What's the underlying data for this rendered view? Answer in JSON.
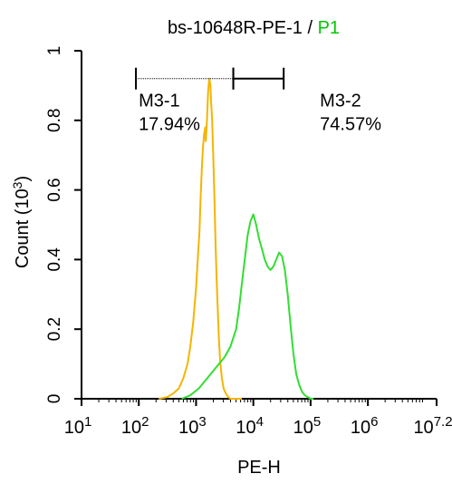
{
  "chart_data": {
    "type": "line",
    "title": {
      "main": "bs-10648R-PE-1",
      "separator": " / ",
      "gate": "P1",
      "gate_color": "#00c800"
    },
    "xlabel": "PE-H",
    "ylabel": "Count",
    "ylabel_unit": "(10",
    "ylabel_exp": "3",
    "ylabel_close": ")",
    "x_scale": "log",
    "xlim_log10": [
      1,
      7.2
    ],
    "ylim": [
      0,
      1
    ],
    "x_ticks": [
      {
        "base": "10",
        "exp": "1",
        "value_log10": 1
      },
      {
        "base": "10",
        "exp": "2",
        "value_log10": 2
      },
      {
        "base": "10",
        "exp": "3",
        "value_log10": 3
      },
      {
        "base": "10",
        "exp": "4",
        "value_log10": 4
      },
      {
        "base": "10",
        "exp": "5",
        "value_log10": 5
      },
      {
        "base": "10",
        "exp": "6",
        "value_log10": 6
      },
      {
        "base": "10",
        "exp": "7.2",
        "value_log10": 7.2
      }
    ],
    "y_ticks": [
      {
        "label": "0",
        "value": 0
      },
      {
        "label": "0.2",
        "value": 0.2
      },
      {
        "label": "0.4",
        "value": 0.4
      },
      {
        "label": "0.6",
        "value": 0.6
      },
      {
        "label": "0.8",
        "value": 0.8
      },
      {
        "label": "1",
        "value": 1
      }
    ],
    "grid": false,
    "series": [
      {
        "color": "#f5b400",
        "x_log10": [
          2.35,
          2.5,
          2.6,
          2.7,
          2.78,
          2.85,
          2.9,
          2.95,
          3.0,
          3.03,
          3.06,
          3.08,
          3.1,
          3.12,
          3.14,
          3.16,
          3.17,
          3.19,
          3.21,
          3.23,
          3.25,
          3.26,
          3.28,
          3.3,
          3.32,
          3.34,
          3.36,
          3.38,
          3.4,
          3.42,
          3.45,
          3.48,
          3.52,
          3.56,
          3.6,
          3.65,
          3.72,
          3.8
        ],
        "y": [
          0.0,
          0.005,
          0.015,
          0.03,
          0.06,
          0.1,
          0.15,
          0.22,
          0.32,
          0.4,
          0.48,
          0.58,
          0.66,
          0.72,
          0.76,
          0.78,
          0.74,
          0.8,
          0.88,
          0.92,
          0.9,
          0.86,
          0.8,
          0.7,
          0.58,
          0.45,
          0.34,
          0.25,
          0.17,
          0.11,
          0.06,
          0.03,
          0.015,
          0.005,
          0.0,
          0.0,
          0.0,
          0.0
        ]
      },
      {
        "color": "#33dd33",
        "x_log10": [
          2.75,
          2.9,
          3.05,
          3.2,
          3.35,
          3.5,
          3.6,
          3.7,
          3.75,
          3.8,
          3.85,
          3.9,
          3.95,
          4.0,
          4.05,
          4.1,
          4.15,
          4.2,
          4.25,
          4.3,
          4.35,
          4.4,
          4.45,
          4.5,
          4.55,
          4.6,
          4.65,
          4.7,
          4.75,
          4.8,
          4.85,
          4.9,
          4.95,
          5.0,
          5.05
        ],
        "y": [
          0.0,
          0.01,
          0.03,
          0.06,
          0.09,
          0.12,
          0.15,
          0.2,
          0.26,
          0.33,
          0.4,
          0.47,
          0.51,
          0.53,
          0.5,
          0.46,
          0.43,
          0.4,
          0.38,
          0.37,
          0.38,
          0.4,
          0.42,
          0.41,
          0.37,
          0.3,
          0.21,
          0.13,
          0.07,
          0.04,
          0.02,
          0.01,
          0.005,
          0.0,
          0.0
        ]
      }
    ],
    "markers": [
      {
        "name": "M3-1",
        "percent": "17.94%",
        "x_start_log10": 1.95,
        "x_end_log10": 3.65,
        "y": 0.92,
        "line_style": "dotted"
      },
      {
        "name": "M3-2",
        "percent": "74.57%",
        "x_start_log10": 3.65,
        "x_end_log10": 4.53,
        "y": 0.92,
        "line_style": "solid"
      }
    ]
  }
}
